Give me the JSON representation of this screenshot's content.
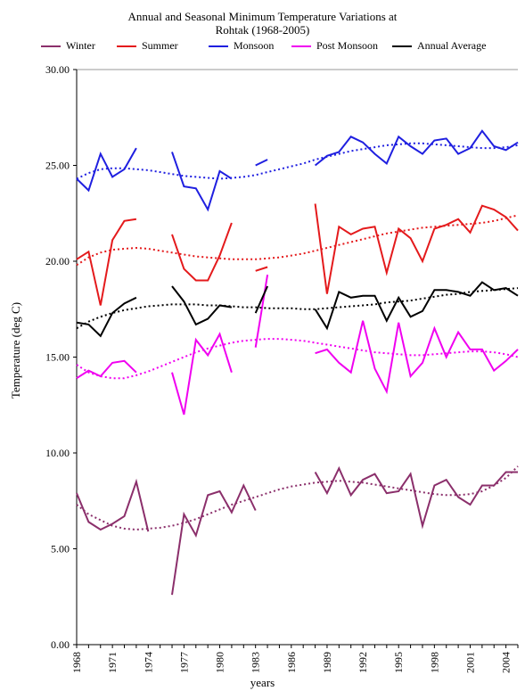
{
  "chart_data": {
    "type": "line",
    "title_line1": "Annual and Seasonal Minimum Temperature Variations at",
    "title_line2": "Rohtak (1968-2005)",
    "xlabel": "years",
    "ylabel": "Temperature (deg C)",
    "xlim": [
      1968,
      2005
    ],
    "ylim": [
      0,
      30
    ],
    "yticks": [
      "0.00",
      "5.00",
      "10.00",
      "15.00",
      "20.00",
      "25.00",
      "30.00"
    ],
    "xticks": [
      "1968",
      "1971",
      "1974",
      "1977",
      "1980",
      "1983",
      "1986",
      "1989",
      "1992",
      "1995",
      "1998",
      "2001",
      "2004"
    ],
    "grid": "horizontal-top-only",
    "legend_position": "top",
    "x": [
      1968,
      1969,
      1970,
      1971,
      1972,
      1973,
      1974,
      1975,
      1976,
      1977,
      1978,
      1979,
      1980,
      1981,
      1982,
      1983,
      1984,
      1985,
      1986,
      1987,
      1988,
      1989,
      1990,
      1991,
      1992,
      1993,
      1994,
      1995,
      1996,
      1997,
      1998,
      1999,
      2000,
      2001,
      2002,
      2003,
      2004,
      2005
    ],
    "series": [
      {
        "name": "Winter",
        "color": "#8B2F6B",
        "values": [
          7.9,
          6.4,
          6.0,
          6.3,
          6.7,
          8.5,
          5.9,
          null,
          2.6,
          6.8,
          5.7,
          7.8,
          8.0,
          6.9,
          8.3,
          7.0,
          null,
          null,
          null,
          null,
          9.0,
          7.9,
          9.2,
          7.8,
          8.6,
          8.9,
          7.9,
          8.0,
          8.9,
          6.2,
          8.3,
          8.6,
          7.7,
          7.3,
          8.3,
          8.3,
          9.0,
          9.0
        ],
        "trend": [
          7.3,
          6.8,
          6.5,
          6.2,
          6.05,
          6.0,
          6.05,
          6.1,
          6.2,
          6.35,
          6.55,
          6.8,
          7.05,
          7.3,
          7.5,
          7.7,
          7.9,
          8.1,
          8.25,
          8.35,
          8.45,
          8.5,
          8.55,
          8.5,
          8.45,
          8.35,
          8.25,
          8.15,
          8.05,
          7.95,
          7.85,
          7.8,
          7.8,
          7.85,
          8.0,
          8.3,
          8.7,
          9.3
        ]
      },
      {
        "name": "Summer",
        "color": "#E41A1C",
        "values": [
          20.1,
          20.5,
          17.7,
          21.1,
          22.1,
          22.2,
          null,
          null,
          21.4,
          19.6,
          19.0,
          19.0,
          20.3,
          22.0,
          null,
          19.5,
          19.7,
          null,
          null,
          null,
          23.0,
          18.3,
          21.8,
          21.4,
          21.7,
          21.8,
          19.4,
          21.7,
          21.2,
          20.0,
          21.7,
          21.9,
          22.2,
          21.5,
          22.9,
          22.7,
          22.3,
          21.6
        ],
        "trend": [
          19.8,
          20.2,
          20.45,
          20.6,
          20.65,
          20.7,
          20.65,
          20.55,
          20.45,
          20.35,
          20.25,
          20.2,
          20.15,
          20.1,
          20.1,
          20.1,
          20.15,
          20.2,
          20.3,
          20.4,
          20.55,
          20.7,
          20.85,
          21.0,
          21.15,
          21.3,
          21.45,
          21.55,
          21.65,
          21.75,
          21.8,
          21.85,
          21.9,
          21.95,
          22.0,
          22.1,
          22.25,
          22.4
        ]
      },
      {
        "name": "Monsoon",
        "color": "#1F1FE0",
        "values": [
          24.3,
          23.7,
          25.6,
          24.4,
          24.8,
          25.9,
          null,
          null,
          25.7,
          23.9,
          23.8,
          22.7,
          24.7,
          24.3,
          null,
          25.0,
          25.3,
          null,
          null,
          null,
          25.0,
          25.5,
          25.7,
          26.5,
          26.2,
          25.6,
          25.1,
          26.5,
          26.0,
          25.6,
          26.3,
          26.4,
          25.6,
          25.9,
          26.8,
          26.0,
          25.8,
          26.2
        ],
        "trend": [
          24.3,
          24.6,
          24.8,
          24.85,
          24.85,
          24.8,
          24.75,
          24.65,
          24.55,
          24.45,
          24.4,
          24.35,
          24.3,
          24.35,
          24.4,
          24.5,
          24.65,
          24.8,
          24.95,
          25.1,
          25.3,
          25.45,
          25.6,
          25.75,
          25.85,
          25.95,
          26.05,
          26.1,
          26.15,
          26.15,
          26.1,
          26.05,
          26.0,
          25.95,
          25.9,
          25.9,
          25.95,
          26.05
        ]
      },
      {
        "name": "Post Monsoon",
        "color": "#F000F0",
        "values": [
          13.9,
          14.3,
          14.0,
          14.7,
          14.8,
          14.2,
          null,
          null,
          14.2,
          12.0,
          15.9,
          15.1,
          16.2,
          14.2,
          null,
          15.5,
          19.3,
          null,
          null,
          null,
          15.2,
          15.4,
          14.7,
          14.2,
          16.9,
          14.4,
          13.2,
          16.8,
          14.0,
          14.7,
          16.5,
          15.0,
          16.3,
          15.4,
          15.4,
          14.3,
          14.8,
          15.4
        ],
        "trend": [
          14.6,
          14.2,
          14.0,
          13.9,
          13.9,
          14.05,
          14.25,
          14.5,
          14.75,
          15.0,
          15.25,
          15.45,
          15.6,
          15.75,
          15.85,
          15.9,
          15.95,
          15.95,
          15.9,
          15.85,
          15.75,
          15.65,
          15.55,
          15.45,
          15.35,
          15.25,
          15.2,
          15.15,
          15.1,
          15.1,
          15.15,
          15.2,
          15.25,
          15.3,
          15.3,
          15.25,
          15.15,
          15.0
        ]
      },
      {
        "name": "Annual Average",
        "color": "#000000",
        "values": [
          16.8,
          16.7,
          16.1,
          17.3,
          17.8,
          18.1,
          null,
          null,
          18.7,
          17.9,
          16.7,
          17.0,
          17.7,
          17.6,
          null,
          17.3,
          18.7,
          null,
          null,
          null,
          17.5,
          16.5,
          18.4,
          18.1,
          18.2,
          18.2,
          16.9,
          18.1,
          17.1,
          17.4,
          18.5,
          18.5,
          18.4,
          18.2,
          18.9,
          18.5,
          18.6,
          18.2
        ],
        "trend": [
          16.5,
          16.85,
          17.1,
          17.3,
          17.45,
          17.55,
          17.65,
          17.7,
          17.75,
          17.75,
          17.75,
          17.7,
          17.7,
          17.65,
          17.6,
          17.6,
          17.55,
          17.55,
          17.55,
          17.5,
          17.5,
          17.55,
          17.6,
          17.65,
          17.7,
          17.75,
          17.85,
          17.9,
          17.95,
          18.05,
          18.15,
          18.25,
          18.3,
          18.4,
          18.45,
          18.5,
          18.55,
          18.6
        ]
      }
    ]
  }
}
